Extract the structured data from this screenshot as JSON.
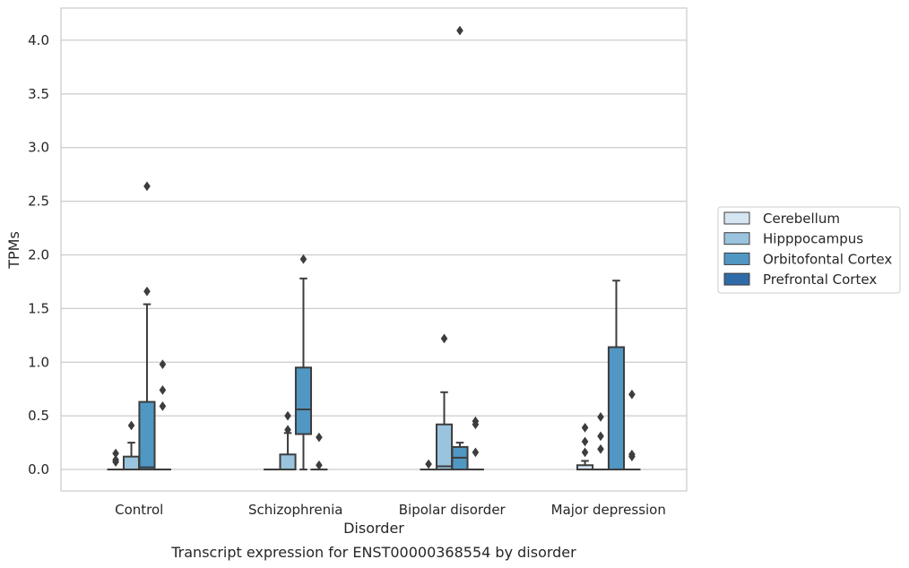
{
  "chart_data": {
    "type": "box",
    "title": "",
    "caption": "Transcript expression for ENST00000368554 by disorder",
    "xlabel": "Disorder",
    "ylabel": "TPMs",
    "ylim": [
      -0.2,
      4.3
    ],
    "yticks": [
      0.0,
      0.5,
      1.0,
      1.5,
      2.0,
      2.5,
      3.0,
      3.5,
      4.0
    ],
    "ytick_labels": [
      "0.0",
      "0.5",
      "1.0",
      "1.5",
      "2.0",
      "2.5",
      "3.0",
      "3.5",
      "4.0"
    ],
    "grid": "horizontal",
    "legend_position": "right",
    "categories": [
      "Control",
      "Schizophrenia",
      "Bipolar disorder",
      "Major depression"
    ],
    "series": [
      {
        "name": "Cerebellum",
        "color": "#d6e5f2",
        "boxes": [
          {
            "category": "Control",
            "q1": 0,
            "median": 0,
            "q3": 0,
            "whisker_low": 0,
            "whisker_high": 0,
            "outliers": [
              0.07,
              0.09,
              0.15
            ]
          },
          {
            "category": "Schizophrenia",
            "q1": 0,
            "median": 0,
            "q3": 0,
            "whisker_low": 0,
            "whisker_high": 0,
            "outliers": []
          },
          {
            "category": "Bipolar disorder",
            "q1": 0,
            "median": 0,
            "q3": 0,
            "whisker_low": 0,
            "whisker_high": 0,
            "outliers": [
              0.05
            ]
          },
          {
            "category": "Major depression",
            "q1": 0,
            "median": 0,
            "q3": 0.04,
            "whisker_low": 0,
            "whisker_high": 0.08,
            "outliers": [
              0.16,
              0.26,
              0.39
            ]
          }
        ]
      },
      {
        "name": "Hipppocampus",
        "color": "#9ac4de",
        "boxes": [
          {
            "category": "Control",
            "q1": 0,
            "median": 0,
            "q3": 0.12,
            "whisker_low": 0,
            "whisker_high": 0.25,
            "outliers": [
              0.41
            ]
          },
          {
            "category": "Schizophrenia",
            "q1": 0,
            "median": 0,
            "q3": 0.14,
            "whisker_low": 0,
            "whisker_high": 0.34,
            "outliers": [
              0.37,
              0.5
            ]
          },
          {
            "category": "Bipolar disorder",
            "q1": 0,
            "median": 0.03,
            "q3": 0.42,
            "whisker_low": 0,
            "whisker_high": 0.72,
            "outliers": [
              1.22
            ]
          },
          {
            "category": "Major depression",
            "q1": 0,
            "median": 0,
            "q3": 0,
            "whisker_low": 0,
            "whisker_high": 0,
            "outliers": [
              0.19,
              0.31,
              0.49
            ]
          }
        ]
      },
      {
        "name": "Orbitofontal Cortex",
        "color": "#5097c4",
        "boxes": [
          {
            "category": "Control",
            "q1": 0,
            "median": 0.02,
            "q3": 0.63,
            "whisker_low": 0,
            "whisker_high": 1.54,
            "outliers": [
              1.66,
              2.64
            ]
          },
          {
            "category": "Schizophrenia",
            "q1": 0.33,
            "median": 0.56,
            "q3": 0.95,
            "whisker_low": 0,
            "whisker_high": 1.78,
            "outliers": [
              1.96
            ]
          },
          {
            "category": "Bipolar disorder",
            "q1": 0,
            "median": 0.11,
            "q3": 0.21,
            "whisker_low": 0,
            "whisker_high": 0.25,
            "outliers": [
              4.09
            ]
          },
          {
            "category": "Major depression",
            "q1": 0,
            "median": 0,
            "q3": 1.14,
            "whisker_low": 0,
            "whisker_high": 1.76,
            "outliers": []
          }
        ]
      },
      {
        "name": "Prefrontal Cortex",
        "color": "#2e6ba8",
        "boxes": [
          {
            "category": "Control",
            "q1": 0,
            "median": 0,
            "q3": 0,
            "whisker_low": 0,
            "whisker_high": 0,
            "outliers": [
              0.59,
              0.74,
              0.98
            ]
          },
          {
            "category": "Schizophrenia",
            "q1": 0,
            "median": 0,
            "q3": 0,
            "whisker_low": 0,
            "whisker_high": 0,
            "outliers": [
              0.04,
              0.3
            ]
          },
          {
            "category": "Bipolar disorder",
            "q1": 0,
            "median": 0,
            "q3": 0,
            "whisker_low": 0,
            "whisker_high": 0,
            "outliers": [
              0.16,
              0.42,
              0.45
            ]
          },
          {
            "category": "Major depression",
            "q1": 0,
            "median": 0,
            "q3": 0,
            "whisker_low": 0,
            "whisker_high": 0,
            "outliers": [
              0.12,
              0.14,
              0.7
            ]
          }
        ]
      }
    ]
  }
}
